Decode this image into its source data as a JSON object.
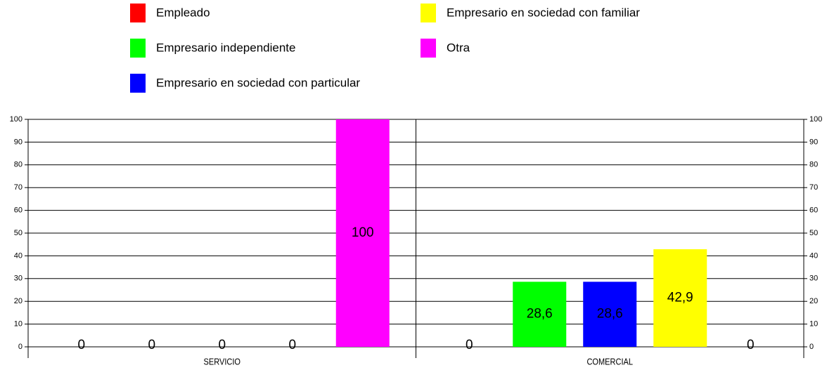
{
  "chart_data": {
    "type": "bar",
    "categories": [
      "SERVICIO",
      "COMERCIAL"
    ],
    "series": [
      {
        "name": "Empleado",
        "color": "#ff0000",
        "values": [
          0,
          0
        ],
        "value_labels": [
          "0",
          "0"
        ]
      },
      {
        "name": "Empresario independiente",
        "color": "#00ff00",
        "values": [
          0,
          28.6
        ],
        "value_labels": [
          "0",
          "28,6"
        ]
      },
      {
        "name": "Empresario en sociedad con particular",
        "color": "#0000ff",
        "values": [
          0,
          28.6
        ],
        "value_labels": [
          "0",
          "28,6"
        ]
      },
      {
        "name": "Empresario en sociedad con familiar",
        "color": "#ffff00",
        "values": [
          0,
          42.9
        ],
        "value_labels": [
          "0",
          "42,9"
        ]
      },
      {
        "name": "Otra",
        "color": "#ff00ff",
        "values": [
          100,
          0
        ],
        "value_labels": [
          "100",
          "0"
        ]
      }
    ],
    "ylim": [
      0,
      100
    ],
    "yticks": [
      0,
      10,
      20,
      30,
      40,
      50,
      60,
      70,
      80,
      90,
      100
    ],
    "grid": true,
    "legend": "top"
  }
}
